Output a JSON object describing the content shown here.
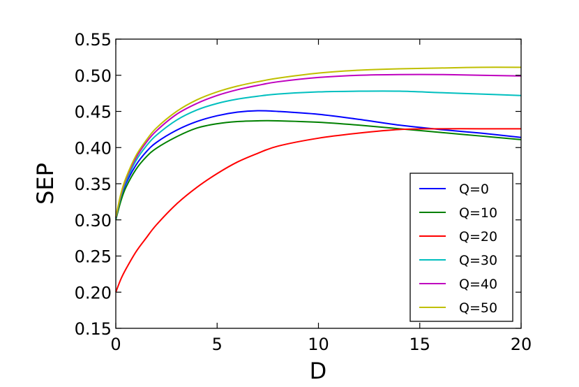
{
  "chart_data": {
    "type": "line",
    "xlabel": "D",
    "ylabel": "SEP",
    "xlim": [
      0,
      20
    ],
    "ylim": [
      0.15,
      0.55
    ],
    "xticks": [
      0,
      5,
      10,
      15,
      20
    ],
    "xtick_labels": [
      "0",
      "5",
      "10",
      "15",
      "20"
    ],
    "yticks": [
      0.15,
      0.2,
      0.25,
      0.3,
      0.35,
      0.4,
      0.45,
      0.5,
      0.55
    ],
    "ytick_labels": [
      "0.15",
      "0.20",
      "0.25",
      "0.30",
      "0.35",
      "0.40",
      "0.45",
      "0.50",
      "0.55"
    ],
    "grid": false,
    "legend_position": "lower-right",
    "x": [
      0,
      0.25,
      0.5,
      1,
      1.5,
      2,
      3,
      4,
      5,
      6,
      7,
      8,
      10,
      12,
      14,
      16,
      18,
      20
    ],
    "series": [
      {
        "name": "Q=0",
        "color": "#0000ff",
        "values": [
          0.302,
          0.33,
          0.35,
          0.376,
          0.394,
          0.407,
          0.424,
          0.436,
          0.444,
          0.449,
          0.451,
          0.45,
          0.446,
          0.439,
          0.431,
          0.425,
          0.42,
          0.414
        ]
      },
      {
        "name": "Q=10",
        "color": "#008000",
        "values": [
          0.3,
          0.326,
          0.345,
          0.37,
          0.387,
          0.399,
          0.415,
          0.427,
          0.433,
          0.436,
          0.437,
          0.437,
          0.435,
          0.431,
          0.426,
          0.421,
          0.416,
          0.411
        ]
      },
      {
        "name": "Q=20",
        "color": "#ff0000",
        "values": [
          0.2,
          0.218,
          0.232,
          0.256,
          0.275,
          0.293,
          0.322,
          0.345,
          0.364,
          0.38,
          0.392,
          0.402,
          0.413,
          0.42,
          0.425,
          0.426,
          0.426,
          0.426
        ]
      },
      {
        "name": "Q=30",
        "color": "#00bfbf",
        "values": [
          0.302,
          0.332,
          0.353,
          0.382,
          0.402,
          0.417,
          0.438,
          0.452,
          0.461,
          0.467,
          0.471,
          0.474,
          0.477,
          0.478,
          0.478,
          0.476,
          0.474,
          0.472
        ]
      },
      {
        "name": "Q=40",
        "color": "#bf00bf",
        "values": [
          0.303,
          0.334,
          0.356,
          0.386,
          0.407,
          0.423,
          0.446,
          0.461,
          0.472,
          0.48,
          0.486,
          0.491,
          0.497,
          0.5,
          0.501,
          0.501,
          0.5,
          0.499
        ]
      },
      {
        "name": "Q=50",
        "color": "#bfbf00",
        "values": [
          0.304,
          0.336,
          0.358,
          0.389,
          0.41,
          0.427,
          0.45,
          0.466,
          0.477,
          0.485,
          0.491,
          0.496,
          0.503,
          0.507,
          0.509,
          0.51,
          0.511,
          0.511
        ]
      }
    ]
  }
}
